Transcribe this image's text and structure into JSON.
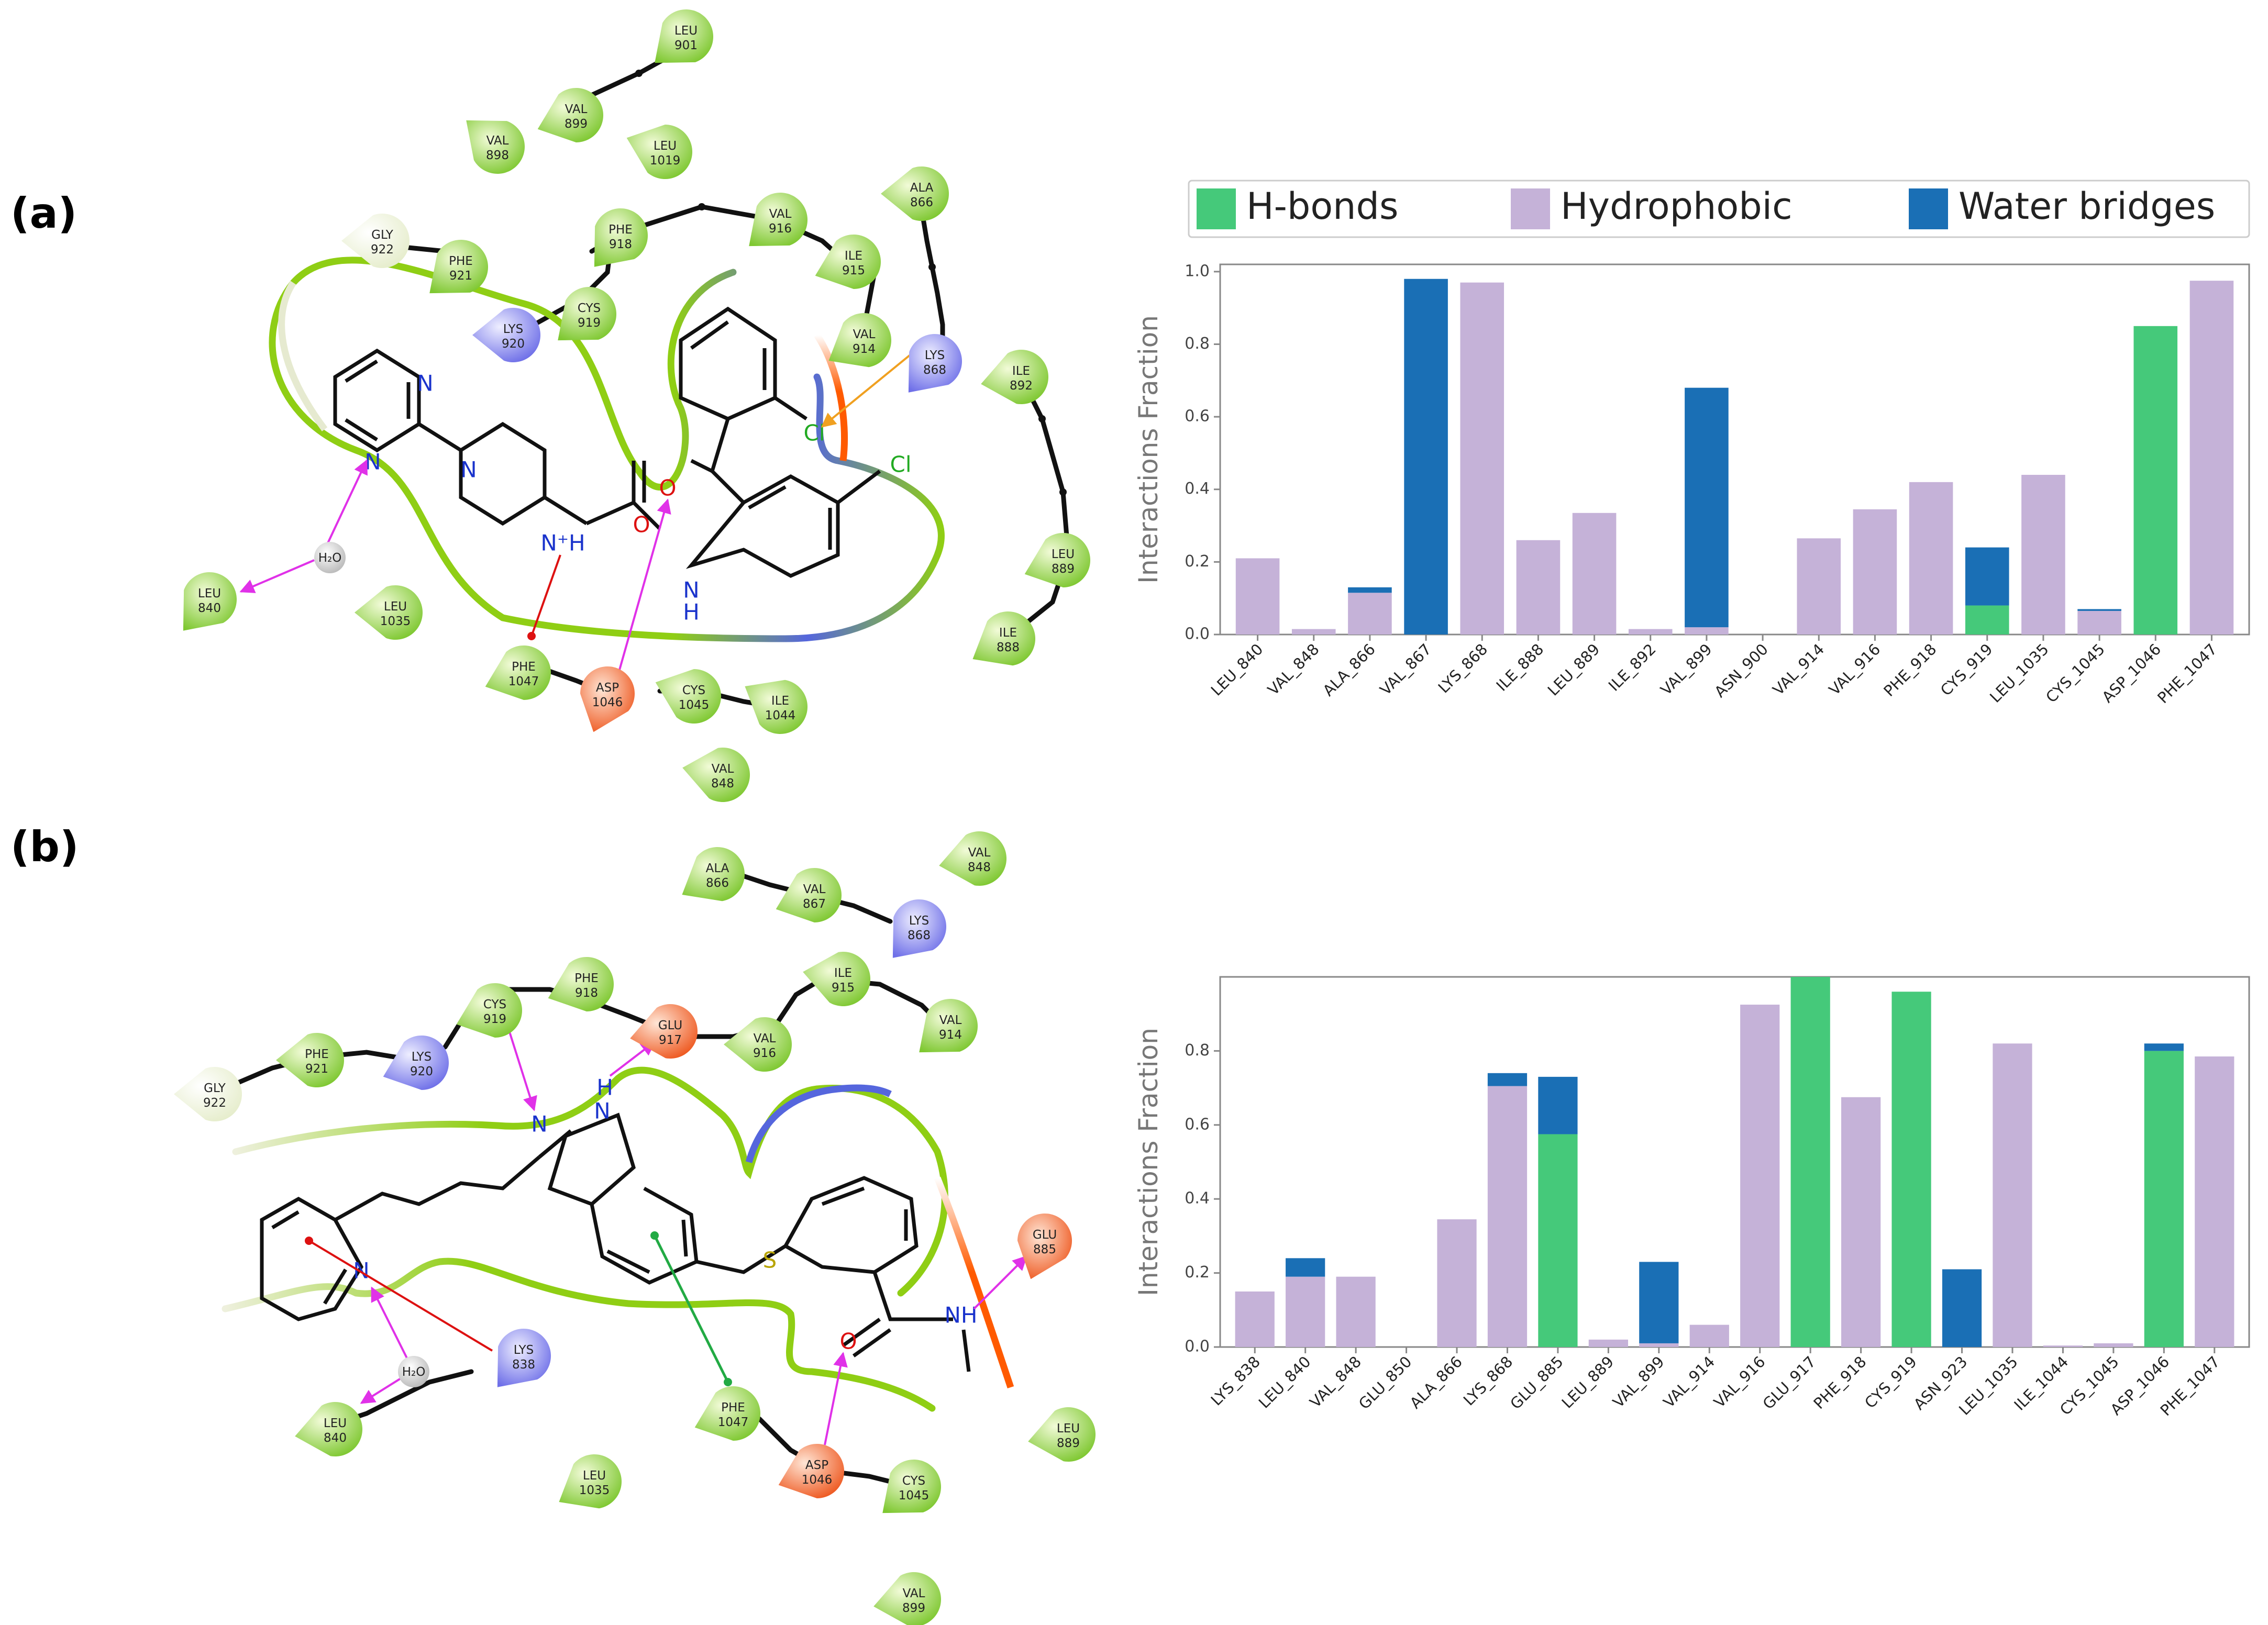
{
  "panels": [
    "(a)",
    "(b)"
  ],
  "legend": [
    {
      "label": "H-bonds",
      "color": "#45c97a"
    },
    {
      "label": "Hydrophobic",
      "color": "#c5b2d8"
    },
    {
      "label": "Water bridges",
      "color": "#1a6fb5"
    }
  ],
  "colors": {
    "hbond": "#45c97a",
    "hydrophobic": "#c5b2d8",
    "water": "#1a6fb5"
  },
  "diagram_a": {
    "residues": [
      {
        "name": "LEU",
        "num": "901",
        "type": "hydrophobic"
      },
      {
        "name": "VAL",
        "num": "899",
        "type": "hydrophobic"
      },
      {
        "name": "VAL",
        "num": "898",
        "type": "hydrophobic"
      },
      {
        "name": "LEU",
        "num": "1019",
        "type": "hydrophobic"
      },
      {
        "name": "GLY",
        "num": "922",
        "type": "glycine"
      },
      {
        "name": "PHE",
        "num": "921",
        "type": "hydrophobic"
      },
      {
        "name": "PHE",
        "num": "918",
        "type": "hydrophobic"
      },
      {
        "name": "VAL",
        "num": "916",
        "type": "hydrophobic"
      },
      {
        "name": "ALA",
        "num": "866",
        "type": "hydrophobic"
      },
      {
        "name": "LYS",
        "num": "920",
        "type": "positive"
      },
      {
        "name": "CYS",
        "num": "919",
        "type": "hydrophobic"
      },
      {
        "name": "ILE",
        "num": "915",
        "type": "hydrophobic"
      },
      {
        "name": "VAL",
        "num": "914",
        "type": "hydrophobic"
      },
      {
        "name": "LYS",
        "num": "868",
        "type": "positive"
      },
      {
        "name": "ILE",
        "num": "892",
        "type": "hydrophobic"
      },
      {
        "name": "LEU",
        "num": "889",
        "type": "hydrophobic"
      },
      {
        "name": "ILE",
        "num": "888",
        "type": "hydrophobic"
      },
      {
        "name": "LEU",
        "num": "840",
        "type": "hydrophobic"
      },
      {
        "name": "LEU",
        "num": "1035",
        "type": "hydrophobic"
      },
      {
        "name": "PHE",
        "num": "1047",
        "type": "hydrophobic"
      },
      {
        "name": "ASP",
        "num": "1046",
        "type": "negative"
      },
      {
        "name": "CYS",
        "num": "1045",
        "type": "hydrophobic"
      },
      {
        "name": "ILE",
        "num": "1044",
        "type": "hydrophobic"
      },
      {
        "name": "VAL",
        "num": "848",
        "type": "hydrophobic"
      }
    ],
    "water_label": "H₂O",
    "atoms": [
      {
        "text": "N",
        "color": "#1a33cc"
      },
      {
        "text": "N",
        "color": "#1a33cc"
      },
      {
        "text": "N",
        "color": "#1a33cc"
      },
      {
        "text": "N⁺H",
        "color": "#1a33cc"
      },
      {
        "text": "O",
        "color": "#dd1111"
      },
      {
        "text": "O",
        "color": "#dd1111"
      },
      {
        "text": "N",
        "color": "#1a33cc"
      },
      {
        "text": "H",
        "color": "#1a33cc"
      },
      {
        "text": "Cl",
        "color": "#22aa22"
      },
      {
        "text": "Cl",
        "color": "#22aa22"
      }
    ]
  },
  "diagram_b": {
    "residues": [
      {
        "name": "ALA",
        "num": "866",
        "type": "hydrophobic"
      },
      {
        "name": "VAL",
        "num": "867",
        "type": "hydrophobic"
      },
      {
        "name": "LYS",
        "num": "868",
        "type": "positive"
      },
      {
        "name": "VAL",
        "num": "848",
        "type": "hydrophobic"
      },
      {
        "name": "CYS",
        "num": "919",
        "type": "hydrophobic"
      },
      {
        "name": "PHE",
        "num": "918",
        "type": "hydrophobic"
      },
      {
        "name": "ILE",
        "num": "915",
        "type": "hydrophobic"
      },
      {
        "name": "PHE",
        "num": "921",
        "type": "hydrophobic"
      },
      {
        "name": "GLU",
        "num": "917",
        "type": "negative"
      },
      {
        "name": "VAL",
        "num": "914",
        "type": "hydrophobic"
      },
      {
        "name": "LYS",
        "num": "920",
        "type": "positive"
      },
      {
        "name": "VAL",
        "num": "916",
        "type": "hydrophobic"
      },
      {
        "name": "GLY",
        "num": "922",
        "type": "glycine"
      },
      {
        "name": "GLU",
        "num": "885",
        "type": "negative"
      },
      {
        "name": "LYS",
        "num": "838",
        "type": "positive"
      },
      {
        "name": "LEU",
        "num": "840",
        "type": "hydrophobic"
      },
      {
        "name": "PHE",
        "num": "1047",
        "type": "hydrophobic"
      },
      {
        "name": "LEU",
        "num": "889",
        "type": "hydrophobic"
      },
      {
        "name": "LEU",
        "num": "1035",
        "type": "hydrophobic"
      },
      {
        "name": "ASP",
        "num": "1046",
        "type": "negative"
      },
      {
        "name": "CYS",
        "num": "1045",
        "type": "hydrophobic"
      },
      {
        "name": "VAL",
        "num": "899",
        "type": "hydrophobic"
      }
    ],
    "water_label": "H₂O",
    "atoms": [
      {
        "text": "N",
        "color": "#1a33cc"
      },
      {
        "text": "N",
        "color": "#1a33cc"
      },
      {
        "text": "H",
        "color": "#1a33cc"
      },
      {
        "text": "N",
        "color": "#1a33cc"
      },
      {
        "text": "S",
        "color": "#b8a400"
      },
      {
        "text": "O",
        "color": "#dd1111"
      },
      {
        "text": "NH",
        "color": "#1a33cc"
      }
    ]
  },
  "chart_data": [
    {
      "type": "bar",
      "stacked": true,
      "ylabel": "Interactions Fraction",
      "ylim": [
        0,
        1.02
      ],
      "yticks": [
        0.0,
        0.2,
        0.4,
        0.6,
        0.8,
        1.0
      ],
      "ytick_labels": [
        "0.0",
        "0.2",
        "0.4",
        "0.6",
        "0.8",
        "1.0"
      ],
      "categories": [
        "LEU_840",
        "VAL_848",
        "ALA_866",
        "VAL_867",
        "LYS_868",
        "ILE_888",
        "LEU_889",
        "ILE_892",
        "VAL_899",
        "ASN_900",
        "VAL_914",
        "VAL_916",
        "PHE_918",
        "CYS_919",
        "LEU_1035",
        "CYS_1045",
        "ASP_1046",
        "PHE_1047"
      ],
      "series": [
        {
          "name": "H-bonds",
          "values": [
            0,
            0,
            0,
            0,
            0,
            0,
            0,
            0,
            0,
            0,
            0,
            0,
            0,
            0.08,
            0,
            0,
            0.85,
            0
          ]
        },
        {
          "name": "Hydrophobic",
          "values": [
            0.21,
            0.015,
            0.115,
            0,
            0.97,
            0.26,
            0.335,
            0.015,
            0.02,
            0,
            0.265,
            0.345,
            0.42,
            0,
            0.44,
            0.065,
            0,
            0.975
          ]
        },
        {
          "name": "Water bridges",
          "values": [
            0,
            0,
            0.015,
            0.98,
            0,
            0,
            0,
            0,
            0.66,
            0,
            0,
            0,
            0,
            0.16,
            0,
            0.005,
            0,
            0
          ]
        }
      ],
      "legend_position": "top"
    },
    {
      "type": "bar",
      "stacked": true,
      "ylabel": "Interactions Fraction",
      "ylim": [
        0,
        1.0
      ],
      "yticks": [
        0.0,
        0.2,
        0.4,
        0.6,
        0.8
      ],
      "ytick_labels": [
        "0.0",
        "0.2",
        "0.4",
        "0.6",
        "0.8"
      ],
      "categories": [
        "LYS_838",
        "LEU_840",
        "VAL_848",
        "GLU_850",
        "ALA_866",
        "LYS_868",
        "GLU_885",
        "LEU_889",
        "VAL_899",
        "VAL_914",
        "VAL_916",
        "GLU_917",
        "PHE_918",
        "CYS_919",
        "ASN_923",
        "LEU_1035",
        "ILE_1044",
        "CYS_1045",
        "ASP_1046",
        "PHE_1047"
      ],
      "series": [
        {
          "name": "H-bonds",
          "values": [
            0,
            0,
            0,
            0,
            0,
            0,
            0.575,
            0,
            0,
            0,
            0,
            1.0,
            0,
            0.96,
            0,
            0,
            0,
            0,
            0.8,
            0
          ]
        },
        {
          "name": "Hydrophobic",
          "values": [
            0.15,
            0.19,
            0.19,
            0,
            0.345,
            0.705,
            0,
            0.02,
            0.01,
            0.06,
            0.925,
            0,
            0.675,
            0,
            0,
            0.82,
            0.004,
            0.01,
            0,
            0.785
          ]
        },
        {
          "name": "Water bridges",
          "values": [
            0,
            0.05,
            0,
            0,
            0,
            0.035,
            0.155,
            0,
            0.22,
            0,
            0,
            0,
            0,
            0,
            0.21,
            0,
            0,
            0,
            0.02,
            0
          ]
        }
      ]
    }
  ]
}
